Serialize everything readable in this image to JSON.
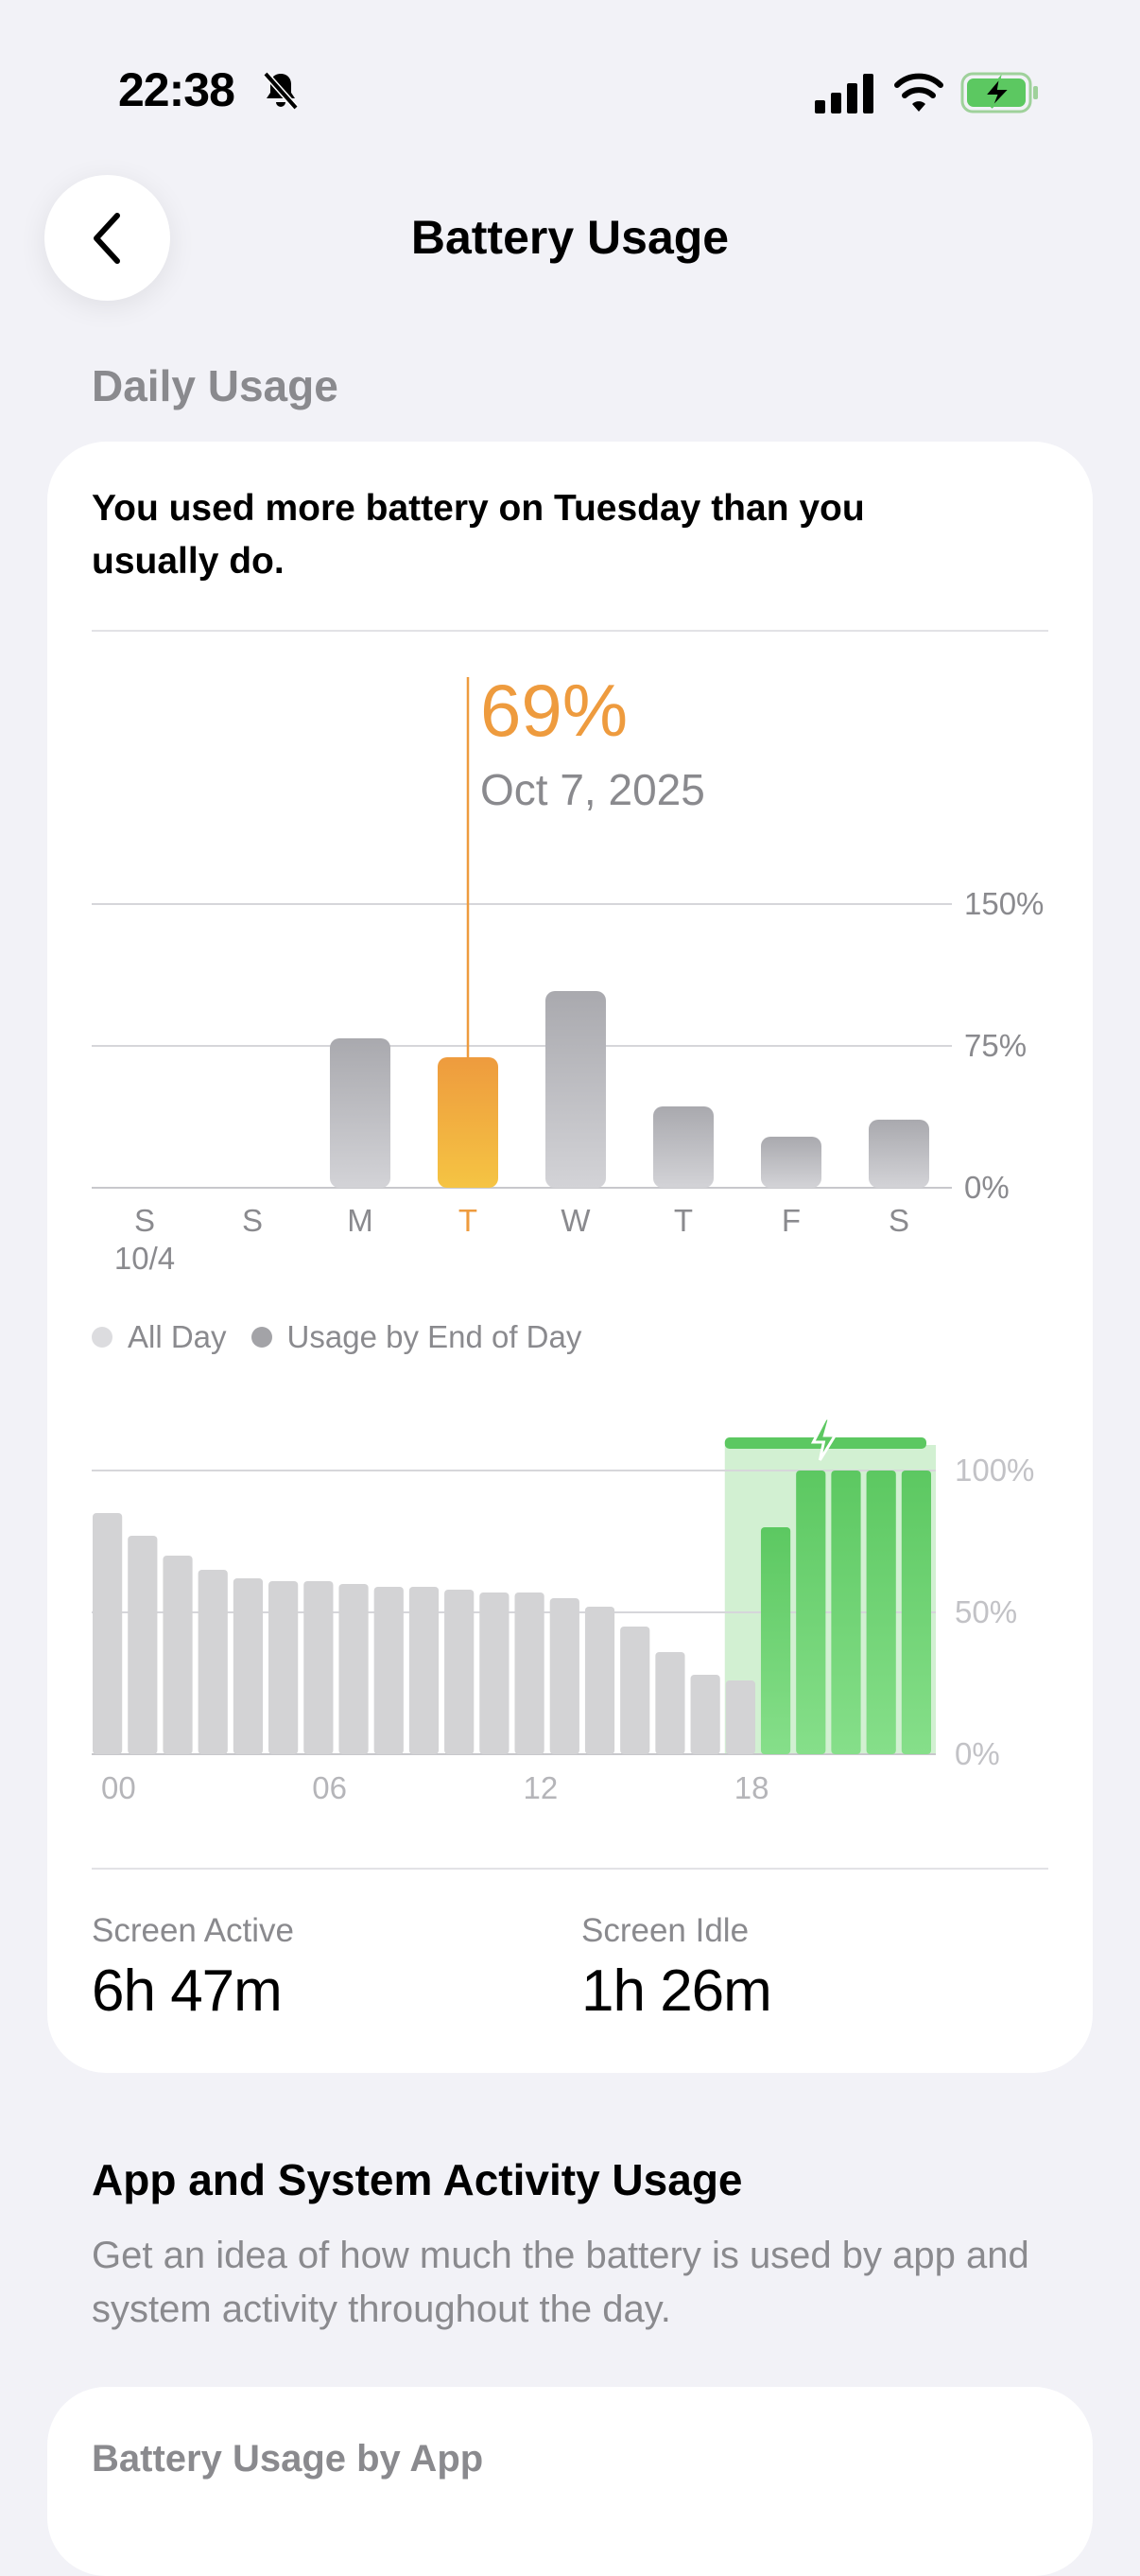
{
  "status_bar": {
    "time": "22:38",
    "icons": [
      "bell-slash-icon",
      "cellular-signal-icon",
      "wifi-icon",
      "battery-charging-icon"
    ]
  },
  "nav": {
    "title": "Battery Usage",
    "back_icon": "chevron-left-icon"
  },
  "section_label": "Daily Usage",
  "insight": "You used more battery on Tuesday than you usually do.",
  "selection": {
    "value": "69%",
    "date": "Oct 7, 2025"
  },
  "legend": {
    "all_day": "All Day",
    "end_of_day": "Usage by End of Day"
  },
  "stats": {
    "screen_active": {
      "label": "Screen Active",
      "value": "6h 47m"
    },
    "screen_idle": {
      "label": "Screen Idle",
      "value": "1h 26m"
    }
  },
  "activity": {
    "title": "App and System Activity Usage",
    "description": "Get an idea of how much the battery is used by app and system activity throughout the day."
  },
  "app_card": {
    "label": "Battery Usage by App"
  },
  "colors": {
    "accent": "#ee9b3e",
    "charging": "#5cc861",
    "bar_gray": "#b6b6ba",
    "background": "#f2f2f7"
  },
  "chart_data": [
    {
      "type": "bar",
      "categories": [
        "S",
        "S",
        "M",
        "T",
        "W",
        "T",
        "F",
        "S"
      ],
      "sublabel": "10/4",
      "values": [
        0,
        0,
        79,
        69,
        104,
        43,
        27,
        36
      ],
      "highlight_index": 3,
      "ytick_labels": [
        "150%",
        "75%",
        "0%"
      ],
      "ylim": [
        0,
        150
      ],
      "yticks": [
        0,
        75,
        150
      ]
    },
    {
      "type": "bar",
      "x_tick_labels": [
        "00",
        "06",
        "12",
        "18"
      ],
      "ytick_labels": [
        "100%",
        "50%",
        "0%"
      ],
      "ylim": [
        0,
        100
      ],
      "yticks": [
        0,
        50,
        100
      ],
      "values": [
        85,
        77,
        70,
        65,
        62,
        61,
        61,
        60,
        59,
        59,
        58,
        57,
        57,
        55,
        52,
        45,
        36,
        28,
        26,
        80,
        100,
        100,
        100,
        100
      ],
      "charging_from_index": 18
    }
  ]
}
